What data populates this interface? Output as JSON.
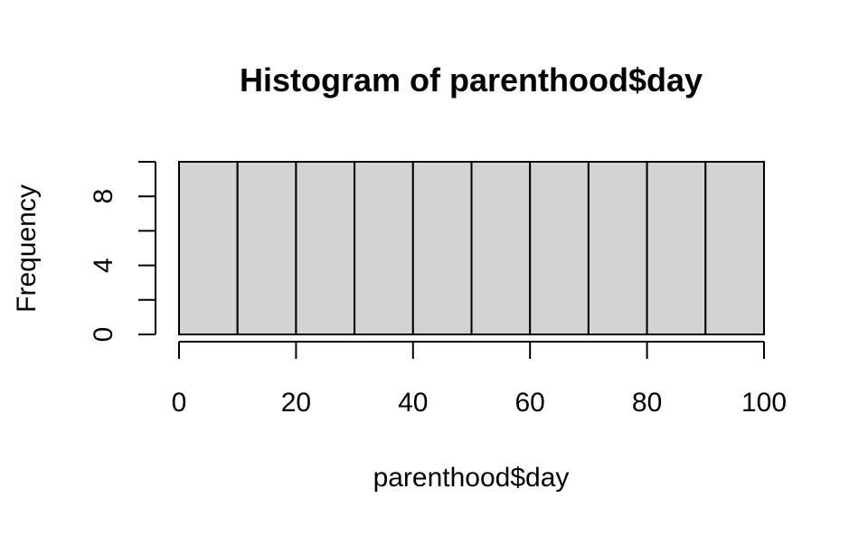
{
  "chart_data": {
    "type": "bar",
    "title": "Histogram of parenthood$day",
    "xlabel": "parenthood$day",
    "ylabel": "Frequency",
    "bins": [
      [
        0,
        10
      ],
      [
        10,
        20
      ],
      [
        20,
        30
      ],
      [
        30,
        40
      ],
      [
        40,
        50
      ],
      [
        50,
        60
      ],
      [
        60,
        70
      ],
      [
        70,
        80
      ],
      [
        80,
        90
      ],
      [
        90,
        100
      ]
    ],
    "values": [
      10,
      10,
      10,
      10,
      10,
      10,
      10,
      10,
      10,
      10
    ],
    "xlim": [
      0,
      100
    ],
    "ylim": [
      0,
      10
    ],
    "x_ticks": [
      0,
      20,
      40,
      60,
      80,
      100
    ],
    "x_tick_labels": [
      "0",
      "20",
      "40",
      "60",
      "80",
      "100"
    ],
    "y_ticks": [
      0,
      2,
      4,
      6,
      8,
      10
    ],
    "y_labeled_ticks": [
      0,
      4,
      8
    ],
    "y_tick_labels": [
      "0",
      "4",
      "8"
    ],
    "bar_color": "#d3d3d3",
    "grid": false
  }
}
